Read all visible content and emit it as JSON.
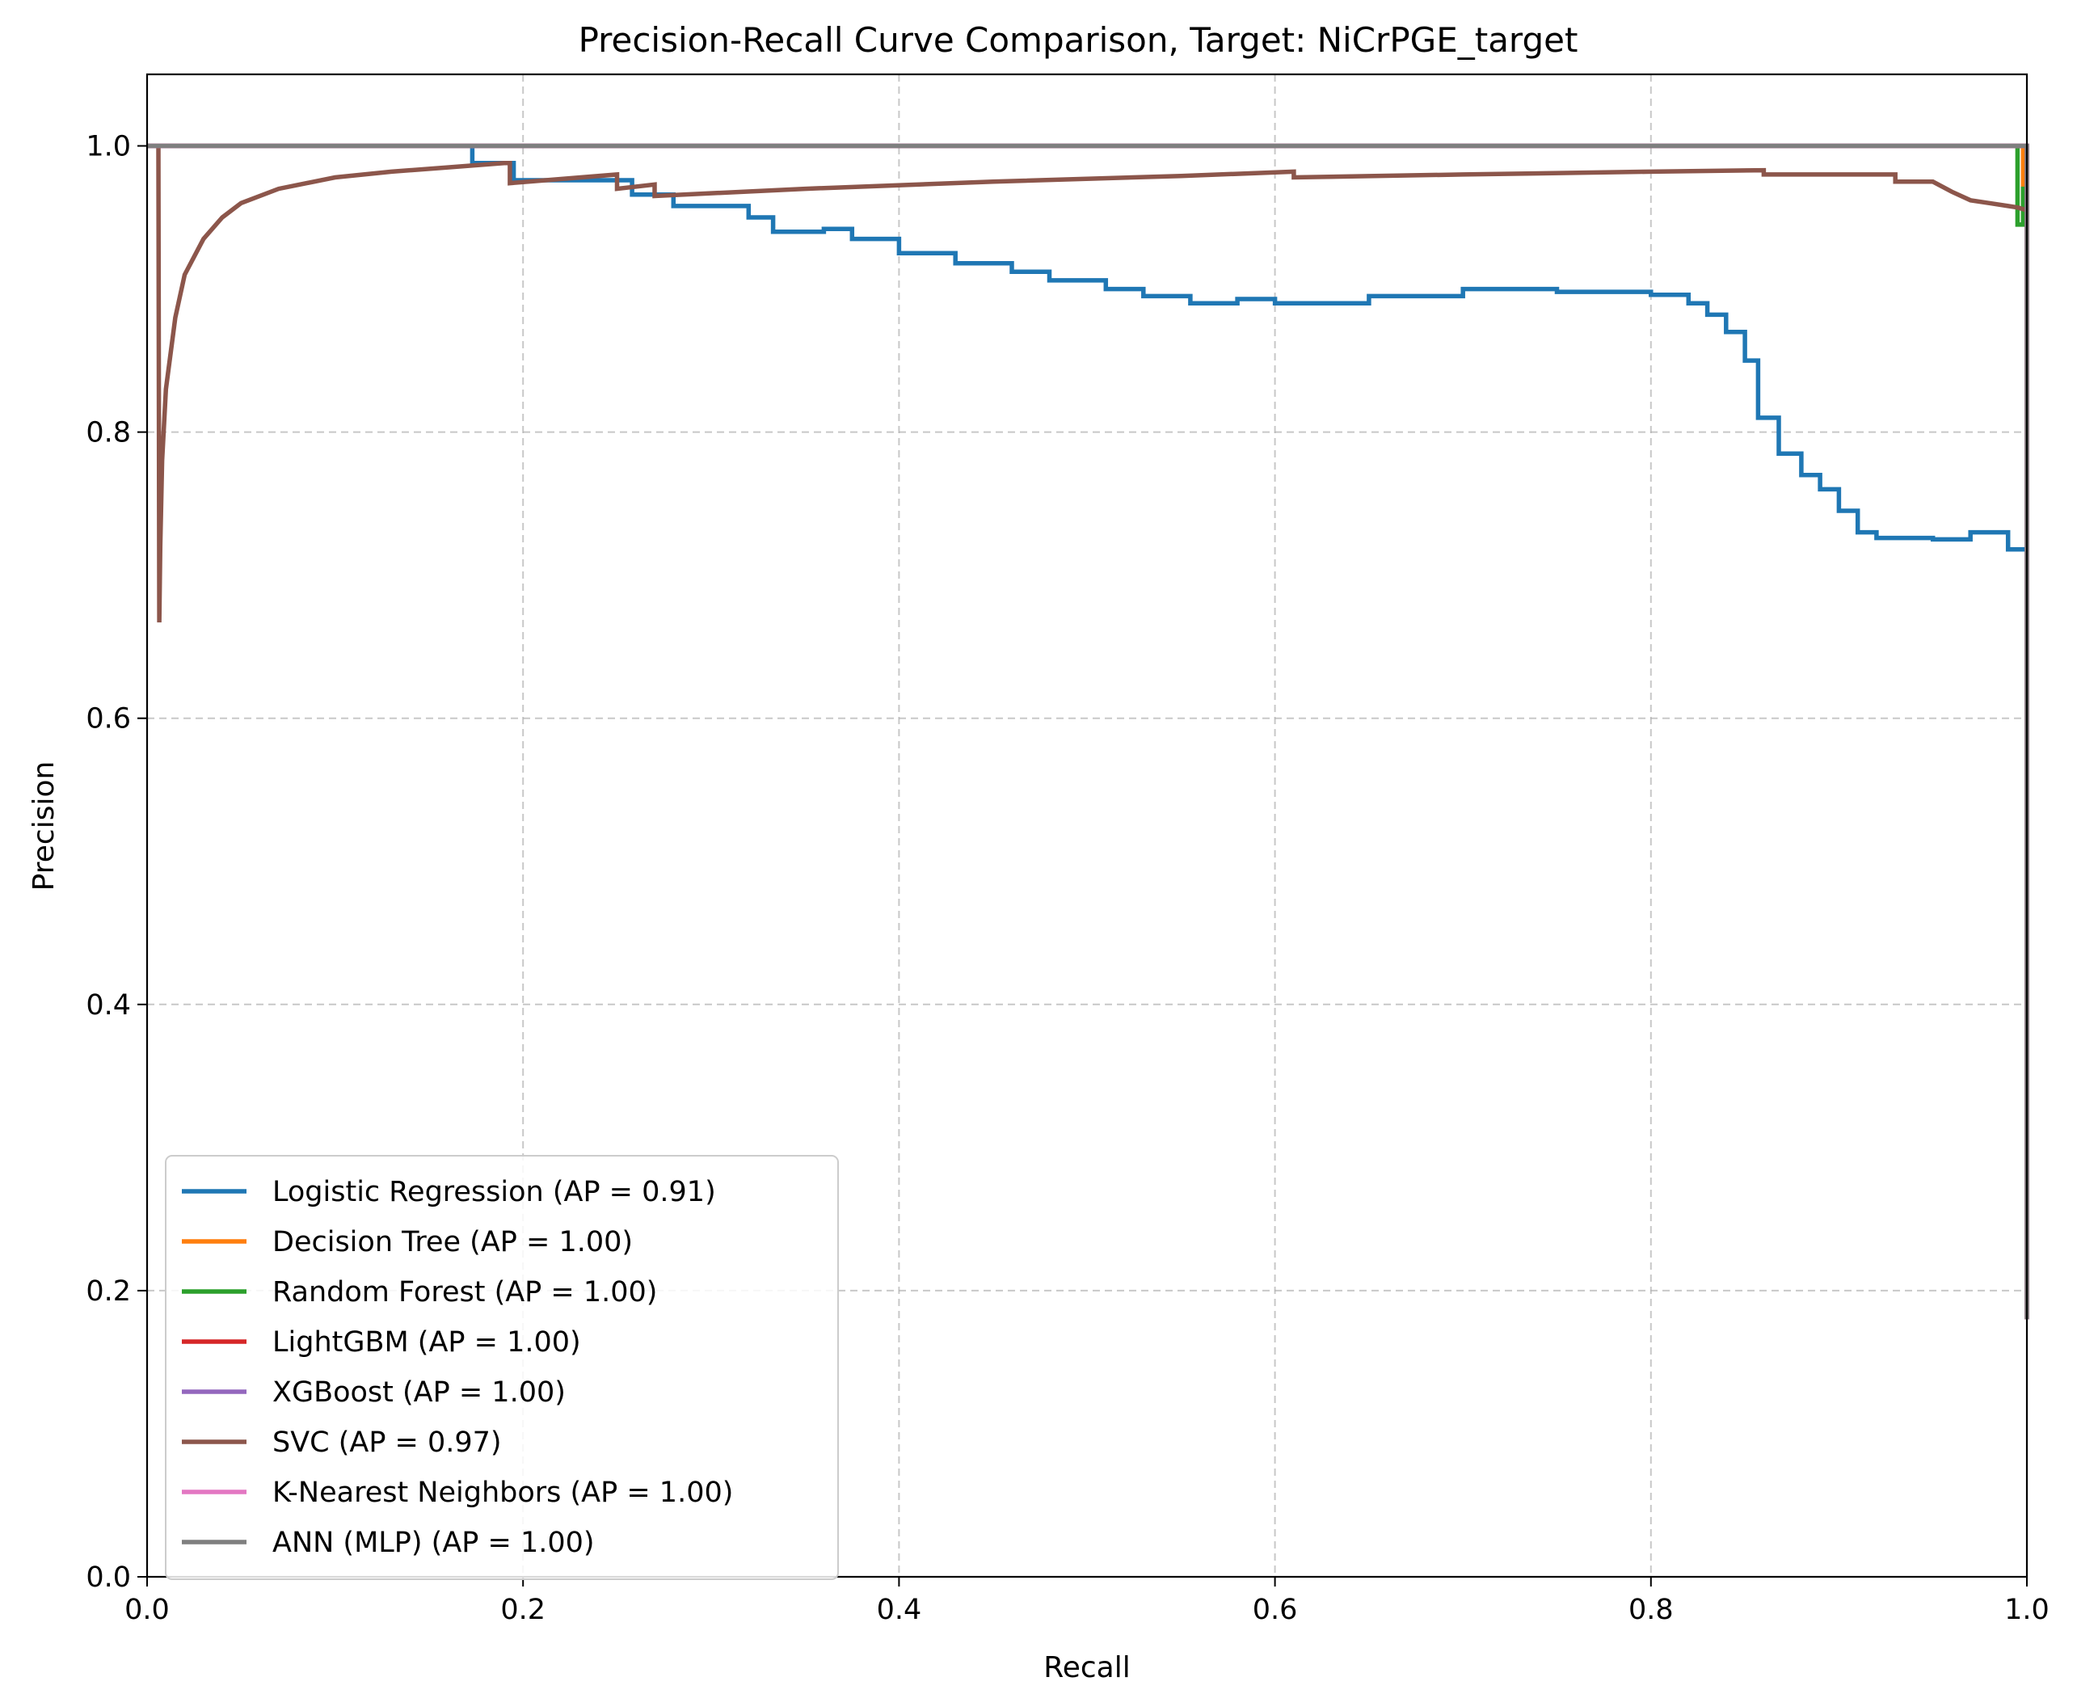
{
  "chart_data": {
    "type": "line",
    "title": "Precision-Recall Curve Comparison, Target: NiCrPGE_target",
    "xlabel": "Recall",
    "ylabel": "Precision",
    "xlim": [
      0.0,
      1.0
    ],
    "ylim": [
      0.0,
      1.05
    ],
    "xticks": [
      "0.0",
      "0.2",
      "0.4",
      "0.6",
      "0.8",
      "1.0"
    ],
    "yticks": [
      "0.0",
      "0.2",
      "0.4",
      "0.6",
      "0.8",
      "1.0"
    ],
    "grid": true,
    "legend_position": "lower-left",
    "series": [
      {
        "name": "Logistic Regression (AP = 0.91)",
        "color": "#1f77b4",
        "step": true,
        "x": [
          0.0,
          0.173,
          0.173,
          0.195,
          0.195,
          0.258,
          0.258,
          0.28,
          0.28,
          0.32,
          0.32,
          0.333,
          0.333,
          0.36,
          0.375,
          0.375,
          0.4,
          0.4,
          0.43,
          0.43,
          0.46,
          0.46,
          0.48,
          0.48,
          0.51,
          0.51,
          0.53,
          0.53,
          0.555,
          0.555,
          0.58,
          0.58,
          0.6,
          0.65,
          0.7,
          0.75,
          0.8,
          0.82,
          0.83,
          0.84,
          0.85,
          0.857,
          0.857,
          0.868,
          0.868,
          0.88,
          0.88,
          0.89,
          0.89,
          0.9,
          0.9,
          0.91,
          0.91,
          0.92,
          0.92,
          0.95,
          0.97,
          0.99,
          1.0,
          1.0
        ],
        "y": [
          1.0,
          1.0,
          0.988,
          0.988,
          0.976,
          0.976,
          0.966,
          0.966,
          0.958,
          0.958,
          0.95,
          0.95,
          0.94,
          0.942,
          0.942,
          0.935,
          0.935,
          0.925,
          0.925,
          0.918,
          0.918,
          0.912,
          0.912,
          0.906,
          0.906,
          0.9,
          0.9,
          0.895,
          0.895,
          0.89,
          0.89,
          0.893,
          0.89,
          0.895,
          0.9,
          0.898,
          0.896,
          0.89,
          0.882,
          0.87,
          0.85,
          0.83,
          0.81,
          0.8,
          0.785,
          0.78,
          0.77,
          0.765,
          0.76,
          0.755,
          0.745,
          0.74,
          0.73,
          0.728,
          0.726,
          0.725,
          0.73,
          0.718,
          0.712,
          0.18
        ]
      },
      {
        "name": "Decision Tree (AP = 1.00)",
        "color": "#ff7f0e",
        "step": true,
        "x": [
          0.0,
          0.998,
          0.998,
          1.0,
          1.0
        ],
        "y": [
          1.0,
          1.0,
          0.96,
          0.96,
          0.18
        ]
      },
      {
        "name": "Random Forest (AP = 1.00)",
        "color": "#2ca02c",
        "step": true,
        "x": [
          0.0,
          0.995,
          0.995,
          0.998,
          0.998,
          1.0,
          1.0
        ],
        "y": [
          1.0,
          1.0,
          0.945,
          0.945,
          0.97,
          0.97,
          0.18
        ]
      },
      {
        "name": "LightGBM (AP = 1.00)",
        "color": "#d62728",
        "step": true,
        "x": [
          0.0,
          1.0,
          1.0
        ],
        "y": [
          1.0,
          1.0,
          0.18
        ]
      },
      {
        "name": "XGBoost (AP = 1.00)",
        "color": "#9467bd",
        "step": true,
        "x": [
          0.0,
          1.0,
          1.0
        ],
        "y": [
          1.0,
          1.0,
          0.18
        ]
      },
      {
        "name": "SVC (AP = 0.97)",
        "color": "#8c564b",
        "step": false,
        "x": [
          0.006,
          0.0065,
          0.007,
          0.008,
          0.01,
          0.015,
          0.02,
          0.03,
          0.04,
          0.05,
          0.07,
          0.1,
          0.13,
          0.16,
          0.19,
          0.193,
          0.193,
          0.25,
          0.25,
          0.27,
          0.27,
          0.35,
          0.45,
          0.55,
          0.61,
          0.61,
          0.7,
          0.8,
          0.86,
          0.86,
          0.93,
          0.93,
          0.95,
          0.96,
          0.97,
          0.98,
          0.99,
          0.995,
          1.0,
          1.0
        ],
        "y": [
          1.0,
          0.667,
          0.72,
          0.78,
          0.83,
          0.88,
          0.91,
          0.935,
          0.95,
          0.96,
          0.97,
          0.978,
          0.982,
          0.985,
          0.988,
          0.988,
          0.974,
          0.98,
          0.97,
          0.973,
          0.965,
          0.97,
          0.975,
          0.979,
          0.982,
          0.978,
          0.98,
          0.982,
          0.983,
          0.98,
          0.98,
          0.975,
          0.975,
          0.968,
          0.962,
          0.96,
          0.958,
          0.957,
          0.955,
          0.18
        ]
      },
      {
        "name": "K-Nearest Neighbors (AP = 1.00)",
        "color": "#e377c2",
        "step": true,
        "x": [
          0.0,
          1.0,
          1.0
        ],
        "y": [
          1.0,
          1.0,
          0.18
        ]
      },
      {
        "name": "ANN (MLP) (AP = 1.00)",
        "color": "#7f7f7f",
        "step": true,
        "x": [
          0.0,
          1.0,
          1.0
        ],
        "y": [
          1.0,
          1.0,
          0.18
        ]
      }
    ]
  }
}
